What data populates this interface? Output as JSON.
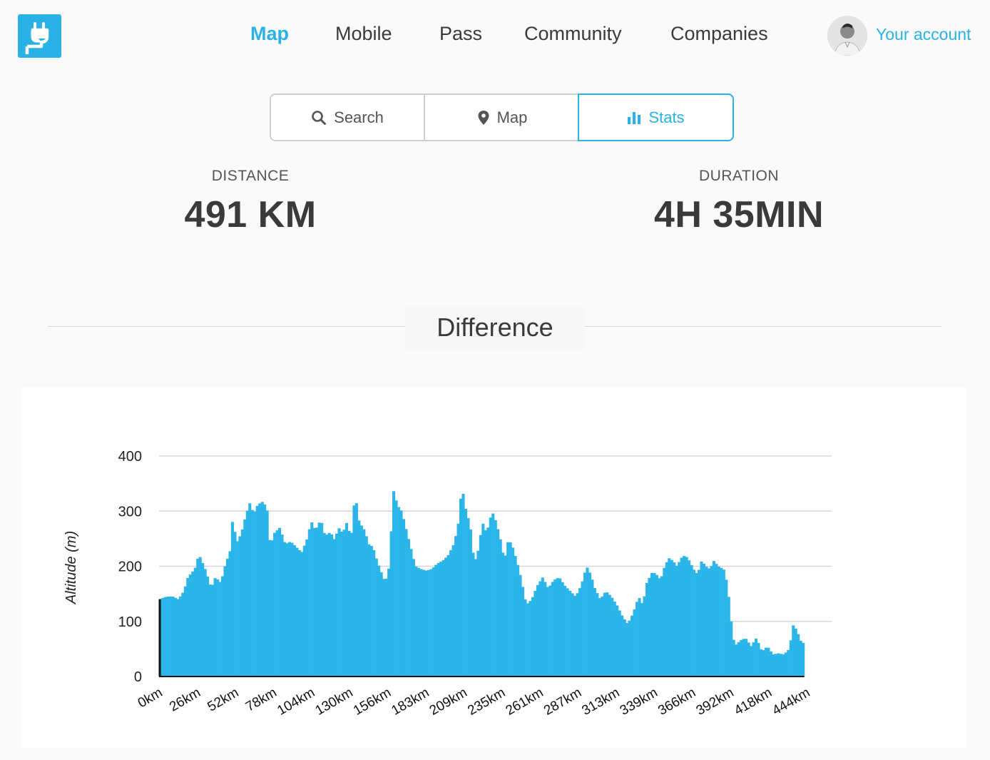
{
  "nav": {
    "items": [
      {
        "label": "Map",
        "active": true
      },
      {
        "label": "Mobile",
        "active": false
      },
      {
        "label": "Pass",
        "active": false
      },
      {
        "label": "Community",
        "active": false
      },
      {
        "label": "Companies",
        "active": false
      }
    ],
    "account_label": "Your account"
  },
  "tabs": {
    "search": "Search",
    "map": "Map",
    "stats": "Stats",
    "active": "stats"
  },
  "stats": {
    "distance_label": "DISTANCE",
    "distance_value": "491 KM",
    "duration_label": "DURATION",
    "duration_value": "4H 35MIN"
  },
  "section": {
    "title": "Difference"
  },
  "colors": {
    "accent": "#2ab2e6",
    "bar": "#2bb5e9"
  },
  "chart_data": {
    "type": "bar",
    "ylabel": "Altitude (m)",
    "ylim": [
      0,
      400
    ],
    "yticks": [
      0,
      100,
      200,
      300,
      400
    ],
    "grid": true,
    "xtick_labels": [
      "0km",
      "26km",
      "52km",
      "78km",
      "104km",
      "130km",
      "156km",
      "183km",
      "209km",
      "235km",
      "261km",
      "287km",
      "313km",
      "339km",
      "366km",
      "392km",
      "418km",
      "444km"
    ],
    "x_range_km": [
      0,
      491
    ],
    "profile": [
      [
        0,
        140
      ],
      [
        3,
        143
      ],
      [
        6,
        145
      ],
      [
        10,
        145
      ],
      [
        14,
        140
      ],
      [
        18,
        155
      ],
      [
        21,
        180
      ],
      [
        26,
        195
      ],
      [
        29,
        222
      ],
      [
        31,
        210
      ],
      [
        34,
        192
      ],
      [
        38,
        160
      ],
      [
        41,
        180
      ],
      [
        45,
        170
      ],
      [
        48,
        200
      ],
      [
        52,
        230
      ],
      [
        54,
        300
      ],
      [
        56,
        240
      ],
      [
        60,
        260
      ],
      [
        63,
        290
      ],
      [
        66,
        315
      ],
      [
        69,
        295
      ],
      [
        72,
        312
      ],
      [
        76,
        318
      ],
      [
        79,
        300
      ],
      [
        81,
        235
      ],
      [
        84,
        260
      ],
      [
        88,
        270
      ],
      [
        92,
        240
      ],
      [
        96,
        245
      ],
      [
        100,
        235
      ],
      [
        104,
        225
      ],
      [
        108,
        250
      ],
      [
        111,
        282
      ],
      [
        114,
        265
      ],
      [
        118,
        285
      ],
      [
        121,
        255
      ],
      [
        125,
        262
      ],
      [
        128,
        248
      ],
      [
        131,
        270
      ],
      [
        134,
        260
      ],
      [
        137,
        280
      ],
      [
        140,
        250
      ],
      [
        143,
        332
      ],
      [
        146,
        280
      ],
      [
        150,
        265
      ],
      [
        153,
        240
      ],
      [
        156,
        235
      ],
      [
        159,
        210
      ],
      [
        162,
        190
      ],
      [
        165,
        170
      ],
      [
        168,
        200
      ],
      [
        171,
        338
      ],
      [
        174,
        310
      ],
      [
        177,
        300
      ],
      [
        180,
        270
      ],
      [
        183,
        240
      ],
      [
        187,
        200
      ],
      [
        191,
        195
      ],
      [
        195,
        192
      ],
      [
        199,
        195
      ],
      [
        203,
        205
      ],
      [
        207,
        210
      ],
      [
        211,
        220
      ],
      [
        215,
        240
      ],
      [
        218,
        270
      ],
      [
        221,
        345
      ],
      [
        224,
        300
      ],
      [
        227,
        275
      ],
      [
        230,
        205
      ],
      [
        233,
        230
      ],
      [
        236,
        280
      ],
      [
        239,
        260
      ],
      [
        243,
        300
      ],
      [
        246,
        280
      ],
      [
        249,
        250
      ],
      [
        252,
        210
      ],
      [
        255,
        250
      ],
      [
        258,
        235
      ],
      [
        261,
        210
      ],
      [
        264,
        180
      ],
      [
        268,
        130
      ],
      [
        272,
        140
      ],
      [
        276,
        165
      ],
      [
        280,
        180
      ],
      [
        284,
        160
      ],
      [
        288,
        175
      ],
      [
        292,
        180
      ],
      [
        296,
        165
      ],
      [
        300,
        155
      ],
      [
        304,
        145
      ],
      [
        308,
        165
      ],
      [
        312,
        200
      ],
      [
        315,
        185
      ],
      [
        318,
        160
      ],
      [
        322,
        140
      ],
      [
        326,
        155
      ],
      [
        330,
        145
      ],
      [
        334,
        130
      ],
      [
        338,
        110
      ],
      [
        342,
        95
      ],
      [
        346,
        115
      ],
      [
        350,
        145
      ],
      [
        353,
        130
      ],
      [
        356,
        170
      ],
      [
        360,
        190
      ],
      [
        363,
        185
      ],
      [
        366,
        175
      ],
      [
        369,
        200
      ],
      [
        372,
        215
      ],
      [
        375,
        210
      ],
      [
        378,
        200
      ],
      [
        381,
        215
      ],
      [
        384,
        220
      ],
      [
        387,
        210
      ],
      [
        390,
        195
      ],
      [
        393,
        185
      ],
      [
        396,
        210
      ],
      [
        399,
        200
      ],
      [
        402,
        195
      ],
      [
        405,
        210
      ],
      [
        408,
        200
      ],
      [
        412,
        195
      ],
      [
        415,
        165
      ],
      [
        417,
        110
      ],
      [
        420,
        55
      ],
      [
        424,
        65
      ],
      [
        428,
        70
      ],
      [
        432,
        55
      ],
      [
        436,
        70
      ],
      [
        440,
        45
      ],
      [
        444,
        55
      ],
      [
        448,
        40
      ],
      [
        452,
        42
      ],
      [
        456,
        40
      ],
      [
        460,
        50
      ],
      [
        463,
        95
      ],
      [
        466,
        80
      ],
      [
        469,
        60
      ],
      [
        471,
        62
      ]
    ]
  }
}
